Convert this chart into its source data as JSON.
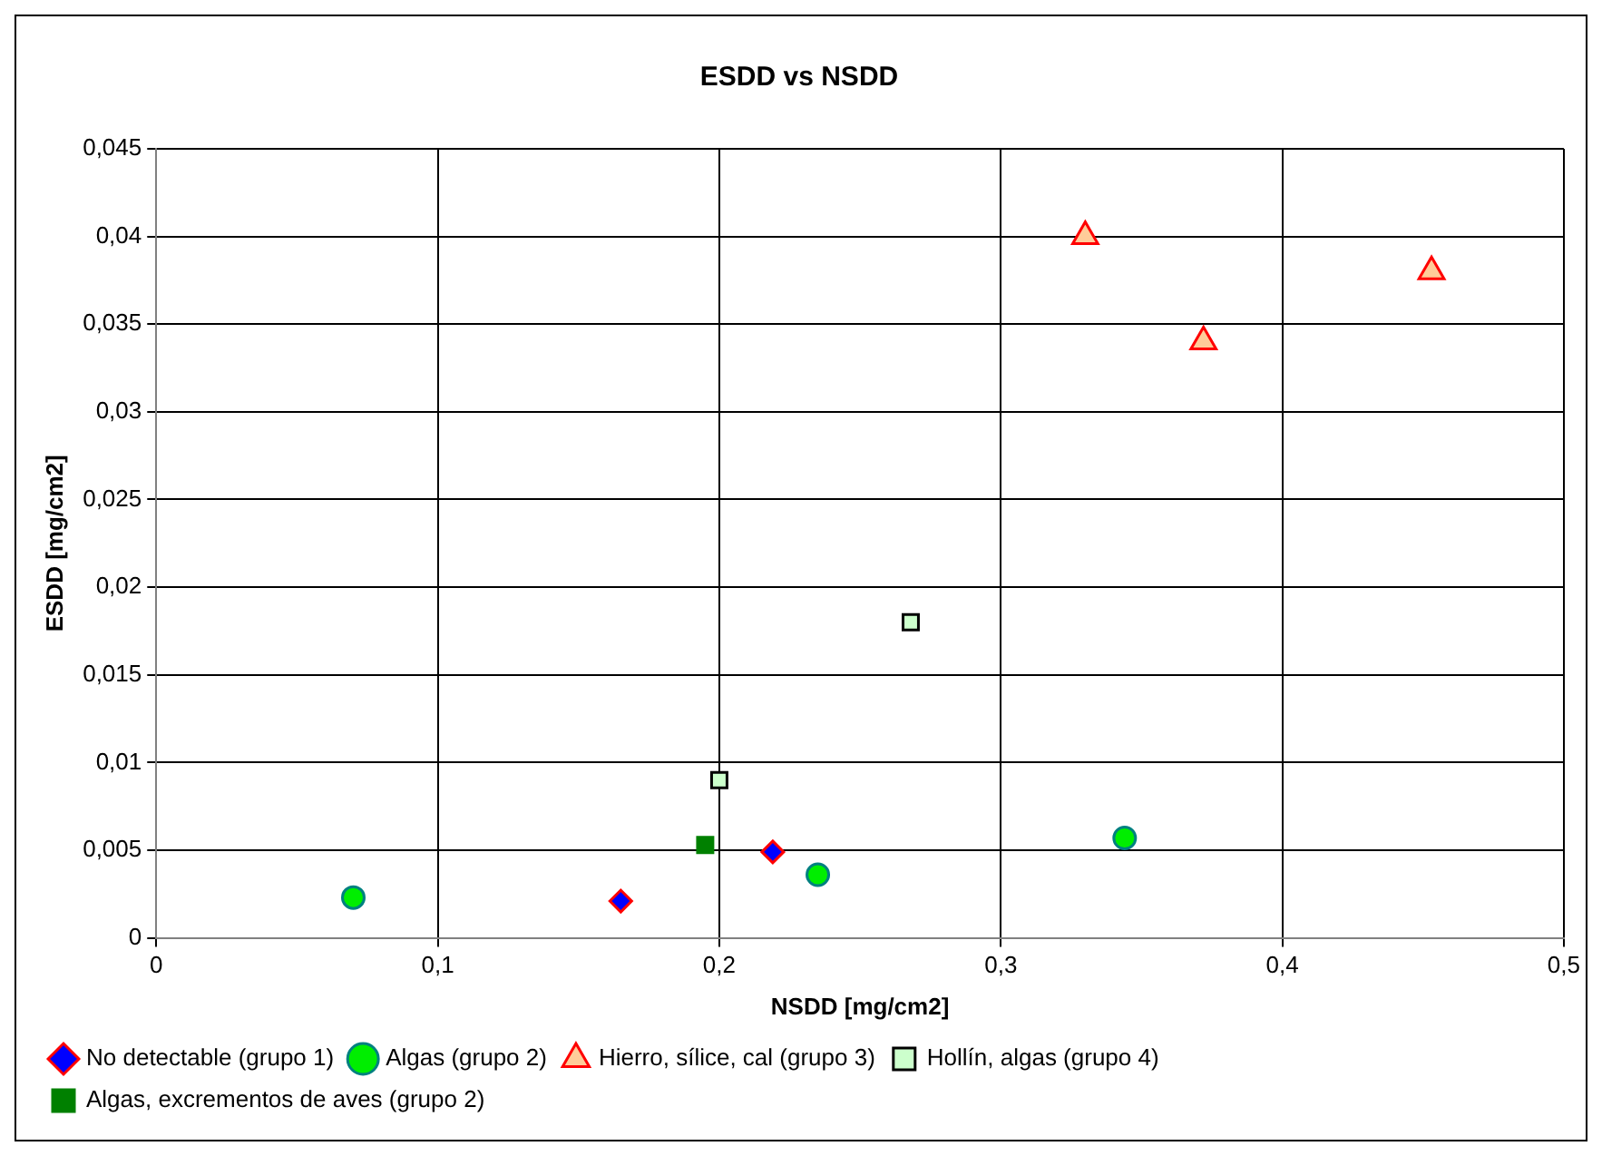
{
  "chart_data": {
    "type": "scatter",
    "title": "ESDD vs NSDD",
    "xlabel": "NSDD [mg/cm2]",
    "ylabel": "ESDD [mg/cm2]",
    "xlim": [
      0,
      0.5
    ],
    "xticks": [
      {
        "value": 0,
        "label": "0"
      },
      {
        "value": 0.1,
        "label": "0,1"
      },
      {
        "value": 0.2,
        "label": "0,2"
      },
      {
        "value": 0.3,
        "label": "0,3"
      },
      {
        "value": 0.4,
        "label": "0,4"
      },
      {
        "value": 0.5,
        "label": "0,5"
      }
    ],
    "ylim": [
      0,
      0.045
    ],
    "yticks": [
      {
        "value": 0,
        "label": "0"
      },
      {
        "value": 0.005,
        "label": "0,005"
      },
      {
        "value": 0.01,
        "label": "0,01"
      },
      {
        "value": 0.015,
        "label": "0,015"
      },
      {
        "value": 0.02,
        "label": "0,02"
      },
      {
        "value": 0.025,
        "label": "0,025"
      },
      {
        "value": 0.03,
        "label": "0,03"
      },
      {
        "value": 0.035,
        "label": "0,035"
      },
      {
        "value": 0.04,
        "label": "0,04"
      },
      {
        "value": 0.045,
        "label": "0,045"
      }
    ],
    "grid": true,
    "legend": "bottom",
    "series": [
      {
        "name": "No detectable (grupo 1)",
        "color": "#0000ff",
        "marker": "diamond",
        "x": [
          0.165,
          0.219
        ],
        "values": [
          0.0021,
          0.0049
        ]
      },
      {
        "name": "Algas (grupo 2)",
        "color": "#00ee00",
        "marker": "circle",
        "x": [
          0.07,
          0.235,
          0.344
        ],
        "values": [
          0.0023,
          0.0036,
          0.0057
        ]
      },
      {
        "name": "Hierro, sílice, cal (grupo 3)",
        "color": "#ffcc99",
        "marker": "triangle",
        "x": [
          0.33,
          0.372,
          0.453
        ],
        "values": [
          0.04,
          0.034,
          0.038
        ]
      },
      {
        "name": "Hollín, algas (grupo 4)",
        "color": "#ccffcc",
        "marker": "square",
        "x": [
          0.2,
          0.268
        ],
        "values": [
          0.009,
          0.018
        ]
      },
      {
        "name": "Algas, excrementos de aves (grupo 2)",
        "color": "#008000",
        "marker": "square",
        "x": [
          0.195
        ],
        "values": [
          0.0053
        ]
      }
    ]
  }
}
